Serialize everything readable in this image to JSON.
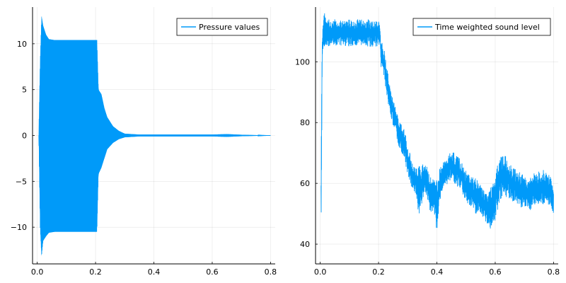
{
  "chart_data": [
    {
      "type": "line",
      "title": "",
      "xlabel": "",
      "ylabel": "",
      "xlim": [
        -0.016,
        0.816
      ],
      "ylim": [
        -14,
        14
      ],
      "xticks": [
        0.0,
        0.2,
        0.4,
        0.6,
        0.8
      ],
      "xtick_labels": [
        "0.0",
        "0.2",
        "0.4",
        "0.6",
        "0.8"
      ],
      "yticks": [
        -10,
        -5,
        0,
        5,
        10
      ],
      "ytick_labels": [
        "−10",
        "−5",
        "0",
        "5",
        "10"
      ],
      "grid": true,
      "legend_position": "top-right",
      "color": "#009af9",
      "series": [
        {
          "name": "Pressure values",
          "style": "oscillation envelope",
          "envelope": {
            "t": [
              0.005,
              0.01,
              0.015,
              0.02,
              0.03,
              0.04,
              0.06,
              0.08,
              0.1,
              0.15,
              0.2,
              0.205,
              0.21,
              0.22,
              0.23,
              0.24,
              0.26,
              0.28,
              0.3,
              0.35,
              0.4,
              0.5,
              0.6,
              0.65,
              0.7,
              0.8
            ],
            "upper": [
              0.0,
              8.0,
              13.0,
              12.0,
              11.0,
              10.5,
              10.4,
              10.4,
              10.4,
              10.4,
              10.4,
              10.4,
              5.0,
              4.5,
              3.0,
              2.0,
              1.0,
              0.5,
              0.2,
              0.1,
              0.1,
              0.1,
              0.1,
              0.15,
              0.08,
              0.0
            ],
            "lower": [
              0.0,
              -10.0,
              -13.2,
              -11.5,
              -11.0,
              -10.6,
              -10.5,
              -10.5,
              -10.5,
              -10.5,
              -10.5,
              -10.5,
              -4.2,
              -3.5,
              -2.5,
              -1.5,
              -0.8,
              -0.4,
              -0.2,
              -0.1,
              -0.1,
              -0.1,
              -0.1,
              -0.15,
              -0.08,
              0.0
            ]
          }
        }
      ]
    },
    {
      "type": "line",
      "title": "",
      "xlabel": "",
      "ylabel": "",
      "xlim": [
        -0.016,
        0.816
      ],
      "ylim": [
        33.5,
        118
      ],
      "xticks": [
        0.0,
        0.2,
        0.4,
        0.6,
        0.8
      ],
      "xtick_labels": [
        "0.0",
        "0.2",
        "0.4",
        "0.6",
        "0.8"
      ],
      "yticks": [
        40,
        60,
        80,
        100
      ],
      "ytick_labels": [
        "40",
        "60",
        "80",
        "100"
      ],
      "grid": true,
      "legend_position": "top-right",
      "color": "#009af9",
      "series": [
        {
          "name": "Time weighted sound level",
          "style": "noisy band",
          "band": {
            "t": [
              0.003,
              0.005,
              0.007,
              0.01,
              0.015,
              0.02,
              0.05,
              0.1,
              0.15,
              0.205,
              0.208,
              0.212,
              0.22,
              0.23,
              0.24,
              0.25,
              0.26,
              0.27,
              0.28,
              0.29,
              0.3,
              0.31,
              0.32,
              0.33,
              0.34,
              0.35,
              0.36,
              0.37,
              0.38,
              0.39,
              0.4,
              0.41,
              0.42,
              0.43,
              0.44,
              0.45,
              0.46,
              0.47,
              0.48,
              0.49,
              0.5,
              0.51,
              0.52,
              0.53,
              0.54,
              0.55,
              0.56,
              0.57,
              0.58,
              0.59,
              0.6,
              0.61,
              0.62,
              0.63,
              0.64,
              0.65,
              0.66,
              0.67,
              0.68,
              0.69,
              0.7,
              0.71,
              0.72,
              0.73,
              0.74,
              0.75,
              0.76,
              0.77,
              0.78,
              0.79,
              0.8
            ],
            "upper": [
              60,
              100,
              110,
              115,
              116,
              114,
              114,
              114,
              114,
              114,
              106,
              107,
              104,
              98,
              92,
              88,
              84,
              82,
              80,
              77,
              73,
              69,
              66,
              65,
              66,
              67,
              68,
              64,
              62,
              61,
              63,
              65,
              67,
              68,
              70,
              71,
              70,
              69,
              68,
              66,
              64,
              63,
              62,
              62,
              61,
              60,
              58,
              57,
              58,
              61,
              64,
              67,
              69,
              70,
              69,
              68,
              66,
              65,
              64,
              63,
              63,
              62,
              62,
              63,
              64,
              64,
              64,
              65,
              64,
              62,
              58
            ],
            "lower": [
              35,
              60,
              100,
              105,
              105,
              105,
              105,
              105,
              105,
              105,
              98,
              99,
              94,
              88,
              82,
              79,
              76,
              72,
              70,
              68,
              62,
              59,
              57,
              56,
              47,
              54,
              57,
              53,
              50,
              51,
              44,
              54,
              58,
              59,
              60,
              61,
              60,
              59,
              58,
              56,
              54,
              53,
              52,
              50,
              50,
              49,
              48,
              47,
              46,
              43,
              48,
              52,
              55,
              56,
              55,
              55,
              54,
              53,
              53,
              52,
              52,
              52,
              51,
              52,
              53,
              53,
              53,
              53,
              53,
              52,
              50
            ]
          }
        }
      ]
    }
  ]
}
